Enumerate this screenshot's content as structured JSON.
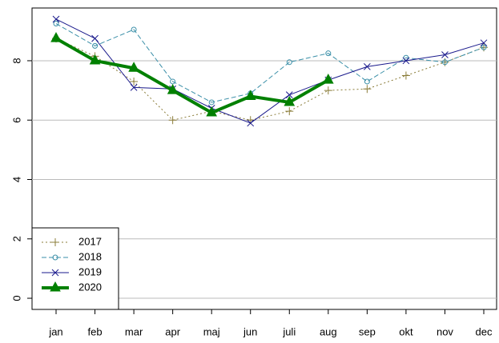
{
  "chart_data": {
    "type": "line",
    "categories": [
      "jan",
      "feb",
      "mar",
      "apr",
      "maj",
      "jun",
      "juli",
      "aug",
      "sep",
      "okt",
      "nov",
      "dec"
    ],
    "series": [
      {
        "name": "2017",
        "color": "#8b7d3a",
        "dash": "2,3",
        "marker": "plus",
        "width": 1,
        "values": [
          8.75,
          8.15,
          7.3,
          6.0,
          6.3,
          6.0,
          6.3,
          7.0,
          7.05,
          7.5,
          7.95,
          8.45
        ]
      },
      {
        "name": "2018",
        "color": "#3a8fa8",
        "dash": "6,3",
        "marker": "circle",
        "width": 1,
        "values": [
          9.25,
          8.5,
          9.05,
          7.3,
          6.6,
          6.9,
          7.95,
          8.25,
          7.3,
          8.1,
          7.95,
          8.45
        ]
      },
      {
        "name": "2019",
        "color": "#1a1a8c",
        "dash": "none",
        "marker": "cross",
        "width": 1,
        "values": [
          9.4,
          8.75,
          7.1,
          7.05,
          6.4,
          5.9,
          6.85,
          7.35,
          7.8,
          8.0,
          8.2,
          8.6
        ]
      },
      {
        "name": "2020",
        "color": "#008000",
        "dash": "none",
        "marker": "triangle",
        "width": 4,
        "values": [
          8.75,
          8.0,
          7.75,
          7.0,
          6.25,
          6.8,
          6.6,
          7.35,
          null,
          null,
          null,
          null
        ]
      }
    ],
    "ylim": [
      -0.376,
      9.776
    ],
    "yticks": [
      0,
      2,
      4,
      6,
      8
    ],
    "grid": true,
    "legend": "bottomleft"
  }
}
